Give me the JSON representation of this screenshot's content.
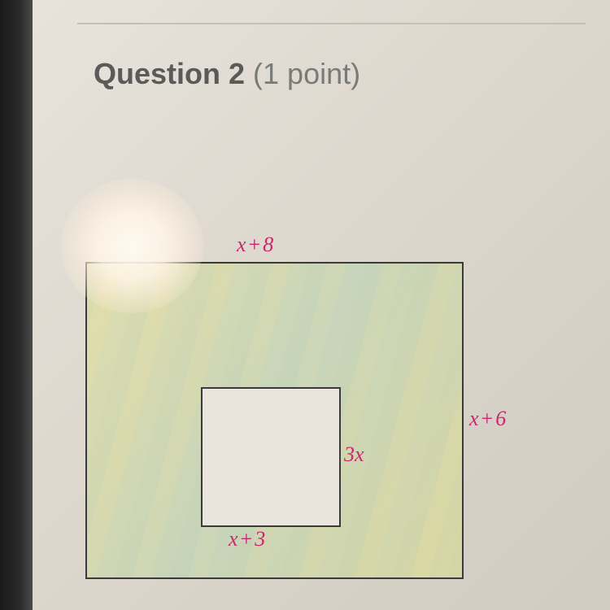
{
  "header": {
    "question_label": "Question 2",
    "points": "(1 point)"
  },
  "figure": {
    "type": "geometry-diagram",
    "outer_rect": {
      "top_label": "x + 8",
      "right_label": "x + 6",
      "fill_color": "#e3df9a",
      "border_color": "#3a3a3a"
    },
    "inner_square": {
      "right_label": "3x",
      "bottom_label": "x + 3",
      "fill_color": "#e9e5dd",
      "border_color": "#3a3a3a"
    },
    "label_color": "#c8286e",
    "label_fontsize": 26,
    "background_color": "#e8e4dc"
  }
}
